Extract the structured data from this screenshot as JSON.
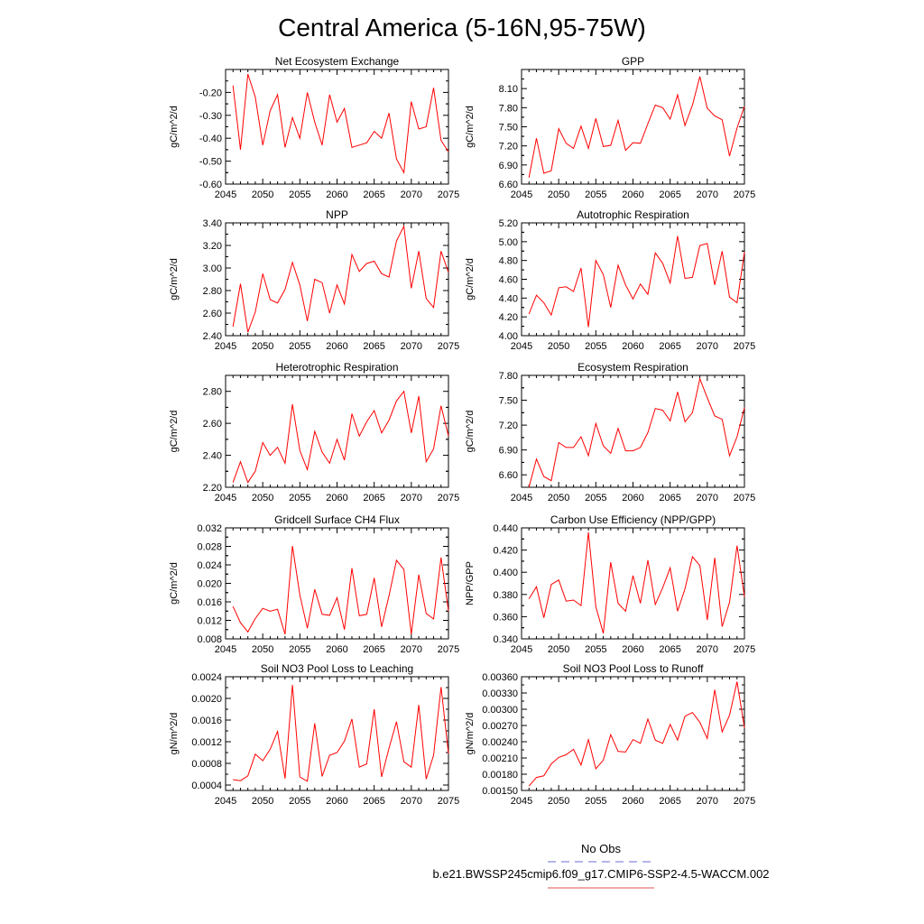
{
  "figure": {
    "title": "Central America (5-16N,95-75W)"
  },
  "legend": {
    "items": [
      {
        "label": "No Obs",
        "color": "#6b6bd6",
        "style": "dashed"
      },
      {
        "label": "b.e21.BWSSP245cmip6.f09_g17.CMIP6-SSP2-4.5-WACCM.002",
        "color": "#e05050",
        "style": "solid"
      }
    ]
  },
  "colors": {
    "series": "#ff0000",
    "axis": "#000000"
  },
  "chart_data": [
    {
      "type": "line",
      "title": "Net Ecosystem Exchange",
      "ylabel": "gC/m^2/d",
      "xlim": [
        2045,
        2075
      ],
      "ylim": [
        -0.6,
        -0.1
      ],
      "xticks": [
        2045,
        2050,
        2055,
        2060,
        2065,
        2070,
        2075
      ],
      "yticks": [
        -0.6,
        -0.5,
        -0.4,
        -0.3,
        -0.2
      ],
      "ytick_labels": [
        "-0.60",
        "-0.50",
        "-0.40",
        "-0.30",
        "-0.20"
      ],
      "x_start": 2046,
      "values": [
        -0.17,
        -0.45,
        -0.12,
        -0.22,
        -0.43,
        -0.28,
        -0.21,
        -0.44,
        -0.31,
        -0.4,
        -0.2,
        -0.33,
        -0.43,
        -0.21,
        -0.33,
        -0.27,
        -0.44,
        -0.43,
        -0.42,
        -0.37,
        -0.4,
        -0.29,
        -0.49,
        -0.55,
        -0.24,
        -0.36,
        -0.35,
        -0.18,
        -0.41,
        -0.46
      ]
    },
    {
      "type": "line",
      "title": "GPP",
      "ylabel": "gC/m^2/d",
      "xlim": [
        2045,
        2075
      ],
      "ylim": [
        6.6,
        8.4
      ],
      "xticks": [
        2045,
        2050,
        2055,
        2060,
        2065,
        2070,
        2075
      ],
      "yticks": [
        6.6,
        6.9,
        7.2,
        7.5,
        7.8,
        8.1
      ],
      "ytick_labels": [
        "6.60",
        "6.90",
        "7.20",
        "7.50",
        "7.80",
        "8.10"
      ],
      "x_start": 2046,
      "values": [
        6.7,
        7.32,
        6.77,
        6.81,
        7.47,
        7.24,
        7.16,
        7.51,
        7.16,
        7.63,
        7.19,
        7.21,
        7.6,
        7.13,
        7.25,
        7.24,
        7.55,
        7.84,
        7.8,
        7.62,
        8.0,
        7.52,
        7.84,
        8.29,
        7.79,
        7.67,
        7.61,
        7.04,
        7.48,
        7.82
      ]
    },
    {
      "type": "line",
      "title": "NPP",
      "ylabel": "gC/m^2/d",
      "xlim": [
        2045,
        2075
      ],
      "ylim": [
        2.4,
        3.4
      ],
      "xticks": [
        2045,
        2050,
        2055,
        2060,
        2065,
        2070,
        2075
      ],
      "yticks": [
        2.4,
        2.6,
        2.8,
        3.0,
        3.2,
        3.4
      ],
      "ytick_labels": [
        "2.40",
        "2.60",
        "2.80",
        "3.00",
        "3.20",
        "3.40"
      ],
      "x_start": 2046,
      "values": [
        2.48,
        2.86,
        2.43,
        2.61,
        2.95,
        2.72,
        2.69,
        2.81,
        3.05,
        2.85,
        2.53,
        2.9,
        2.87,
        2.6,
        2.85,
        2.68,
        3.12,
        2.97,
        3.04,
        3.06,
        2.95,
        2.92,
        3.24,
        3.37,
        2.82,
        3.15,
        2.73,
        2.65,
        3.15,
        2.96
      ]
    },
    {
      "type": "line",
      "title": "Autotrophic Respiration",
      "ylabel": "gC/m^2/d",
      "xlim": [
        2045,
        2075
      ],
      "ylim": [
        4.0,
        5.2
      ],
      "xticks": [
        2045,
        2050,
        2055,
        2060,
        2065,
        2070,
        2075
      ],
      "yticks": [
        4.0,
        4.2,
        4.4,
        4.6,
        4.8,
        5.0,
        5.2
      ],
      "ytick_labels": [
        "4.00",
        "4.20",
        "4.40",
        "4.60",
        "4.80",
        "5.00",
        "5.20"
      ],
      "x_start": 2046,
      "values": [
        4.23,
        4.43,
        4.35,
        4.22,
        4.51,
        4.52,
        4.47,
        4.72,
        4.09,
        4.8,
        4.65,
        4.3,
        4.75,
        4.54,
        4.39,
        4.55,
        4.44,
        4.88,
        4.77,
        4.56,
        5.06,
        4.61,
        4.62,
        4.96,
        4.98,
        4.54,
        4.9,
        4.41,
        4.35,
        4.89
      ]
    },
    {
      "type": "line",
      "title": "Heterotrophic Respiration",
      "ylabel": "gC/m^2/d",
      "xlim": [
        2045,
        2075
      ],
      "ylim": [
        2.2,
        2.9
      ],
      "xticks": [
        2045,
        2050,
        2055,
        2060,
        2065,
        2070,
        2075
      ],
      "yticks": [
        2.2,
        2.4,
        2.6,
        2.8
      ],
      "ytick_labels": [
        "2.20",
        "2.40",
        "2.60",
        "2.80"
      ],
      "x_start": 2046,
      "values": [
        2.23,
        2.36,
        2.23,
        2.3,
        2.48,
        2.4,
        2.45,
        2.35,
        2.72,
        2.43,
        2.31,
        2.55,
        2.42,
        2.35,
        2.5,
        2.37,
        2.66,
        2.52,
        2.61,
        2.68,
        2.54,
        2.62,
        2.74,
        2.8,
        2.54,
        2.77,
        2.36,
        2.44,
        2.71,
        2.52
      ]
    },
    {
      "type": "line",
      "title": "Ecosystem Respiration",
      "ylabel": "gC/m^2/d",
      "xlim": [
        2045,
        2075
      ],
      "ylim": [
        6.45,
        7.8
      ],
      "xticks": [
        2045,
        2050,
        2055,
        2060,
        2065,
        2070,
        2075
      ],
      "yticks": [
        6.6,
        6.9,
        7.2,
        7.5,
        7.8
      ],
      "ytick_labels": [
        "6.60",
        "6.90",
        "7.20",
        "7.50",
        "7.80"
      ],
      "x_start": 2046,
      "values": [
        6.45,
        6.79,
        6.58,
        6.53,
        6.99,
        6.93,
        6.93,
        7.06,
        6.83,
        7.22,
        6.95,
        6.86,
        7.16,
        6.89,
        6.89,
        6.93,
        7.11,
        7.4,
        7.38,
        7.25,
        7.6,
        7.24,
        7.35,
        7.76,
        7.53,
        7.31,
        7.27,
        6.83,
        7.06,
        7.41
      ]
    },
    {
      "type": "line",
      "title": "Gridcell Surface CH4 Flux",
      "ylabel": "gC/m^2/d",
      "xlim": [
        2045,
        2075
      ],
      "ylim": [
        0.008,
        0.032
      ],
      "xticks": [
        2045,
        2050,
        2055,
        2060,
        2065,
        2070,
        2075
      ],
      "yticks": [
        0.008,
        0.012,
        0.016,
        0.02,
        0.024,
        0.028,
        0.032
      ],
      "ytick_labels": [
        "0.008",
        "0.012",
        "0.016",
        "0.020",
        "0.024",
        "0.028",
        "0.032"
      ],
      "x_start": 2046,
      "values": [
        0.015,
        0.0115,
        0.0095,
        0.0124,
        0.0146,
        0.014,
        0.0144,
        0.009,
        0.0281,
        0.0175,
        0.0103,
        0.0187,
        0.0133,
        0.0131,
        0.0169,
        0.01,
        0.0233,
        0.013,
        0.0133,
        0.0212,
        0.0106,
        0.0173,
        0.025,
        0.023,
        0.009,
        0.0219,
        0.0135,
        0.0123,
        0.0256,
        0.014
      ]
    },
    {
      "type": "line",
      "title": "Carbon Use Efficiency (NPP/GPP)",
      "ylabel": "NPP/GPP",
      "xlim": [
        2045,
        2075
      ],
      "ylim": [
        0.34,
        0.44
      ],
      "xticks": [
        2045,
        2050,
        2055,
        2060,
        2065,
        2070,
        2075
      ],
      "yticks": [
        0.34,
        0.36,
        0.38,
        0.4,
        0.42,
        0.44
      ],
      "ytick_labels": [
        "0.340",
        "0.360",
        "0.380",
        "0.400",
        "0.420",
        "0.440"
      ],
      "x_start": 2046,
      "values": [
        0.376,
        0.387,
        0.359,
        0.389,
        0.393,
        0.374,
        0.375,
        0.37,
        0.436,
        0.369,
        0.345,
        0.409,
        0.372,
        0.365,
        0.397,
        0.372,
        0.411,
        0.371,
        0.386,
        0.404,
        0.365,
        0.385,
        0.414,
        0.406,
        0.357,
        0.413,
        0.351,
        0.373,
        0.424,
        0.378
      ]
    },
    {
      "type": "line",
      "title": "Soil NO3 Pool Loss to Leaching",
      "ylabel": "gN/m^2/d",
      "xlim": [
        2045,
        2075
      ],
      "ylim": [
        0.0003,
        0.0024
      ],
      "xticks": [
        2045,
        2050,
        2055,
        2060,
        2065,
        2070,
        2075
      ],
      "yticks": [
        0.0004,
        0.0008,
        0.0012,
        0.0016,
        0.002,
        0.0024
      ],
      "ytick_labels": [
        "0.0004",
        "0.0008",
        "0.0012",
        "0.0016",
        "0.0020",
        "0.0024"
      ],
      "x_start": 2046,
      "values": [
        0.0005,
        0.00048,
        0.00057,
        0.00097,
        0.00085,
        0.00106,
        0.00139,
        0.00052,
        0.00225,
        0.00055,
        0.00047,
        0.00154,
        0.00056,
        0.00095,
        0.001,
        0.00121,
        0.00162,
        0.00073,
        0.00079,
        0.0018,
        0.00055,
        0.00108,
        0.00157,
        0.00083,
        0.00073,
        0.00188,
        0.00051,
        0.00095,
        0.00221,
        0.00098
      ]
    },
    {
      "type": "line",
      "title": "Soil NO3 Pool Loss to Runoff",
      "ylabel": "gN/m^2/d",
      "xlim": [
        2045,
        2075
      ],
      "ylim": [
        0.0015,
        0.0036
      ],
      "xticks": [
        2045,
        2050,
        2055,
        2060,
        2065,
        2070,
        2075
      ],
      "yticks": [
        0.0015,
        0.0018,
        0.0021,
        0.0024,
        0.0027,
        0.003,
        0.0033,
        0.0036
      ],
      "ytick_labels": [
        "0.00150",
        "0.00180",
        "0.00210",
        "0.00240",
        "0.00270",
        "0.00300",
        "0.00330",
        "0.00360"
      ],
      "x_start": 2046,
      "values": [
        0.00158,
        0.00174,
        0.00177,
        0.00199,
        0.00211,
        0.00216,
        0.00226,
        0.00197,
        0.00244,
        0.0019,
        0.00206,
        0.00253,
        0.00222,
        0.00221,
        0.00244,
        0.00237,
        0.00282,
        0.00243,
        0.00237,
        0.00272,
        0.00243,
        0.00287,
        0.00294,
        0.00276,
        0.00246,
        0.00336,
        0.00258,
        0.00289,
        0.00351,
        0.00266
      ]
    }
  ]
}
